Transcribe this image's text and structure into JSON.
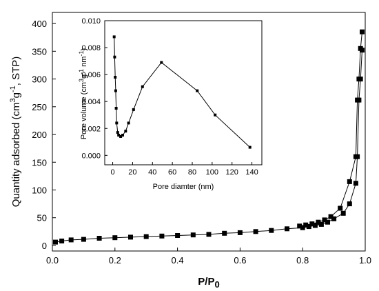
{
  "chart_data": [
    {
      "type": "line",
      "markers": "square",
      "xlabel": "P/P0",
      "ylabel": "Quantity adsorbed (cm3g-1, STP)",
      "xlim": [
        0.0,
        1.0
      ],
      "ylim": [
        -10,
        420
      ],
      "xticks": [
        "0.0",
        "0.2",
        "0.4",
        "0.6",
        "0.8",
        "1.0"
      ],
      "yticks": [
        "0",
        "50",
        "100",
        "150",
        "200",
        "250",
        "300",
        "350",
        "400"
      ],
      "grid": false,
      "series": [
        {
          "x": [
            0.01,
            0.03,
            0.06,
            0.1,
            0.15,
            0.2,
            0.25,
            0.3,
            0.35,
            0.4,
            0.45,
            0.5,
            0.55,
            0.6,
            0.65,
            0.7,
            0.75,
            0.8,
            0.82,
            0.84,
            0.86,
            0.88,
            0.9,
            0.93,
            0.95,
            0.97,
            0.975,
            0.98,
            0.985,
            0.99
          ],
          "values": [
            6,
            8,
            10,
            11,
            13,
            14,
            15,
            16,
            17,
            18,
            19,
            20,
            22,
            23,
            25,
            27,
            30,
            32,
            34,
            36,
            38,
            42,
            48,
            58,
            75,
            112,
            160,
            262,
            300,
            352
          ]
        },
        {
          "x": [
            0.99,
            0.985,
            0.98,
            0.975,
            0.97,
            0.95,
            0.92,
            0.89,
            0.87,
            0.85,
            0.83,
            0.81,
            0.79
          ],
          "values": [
            385,
            355,
            300,
            262,
            160,
            115,
            67,
            52,
            46,
            42,
            39,
            37,
            35
          ]
        }
      ]
    },
    {
      "type": "line",
      "markers": "square",
      "xlabel": "Pore diamter (nm)",
      "ylabel": "Pore volume (cm3g-1nm-1)",
      "xlim": [
        -8,
        150
      ],
      "ylim": [
        -0.0007,
        0.01
      ],
      "xticks": [
        "0",
        "20",
        "40",
        "60",
        "80",
        "100",
        "120",
        "140"
      ],
      "yticks": [
        "0.000",
        "0.002",
        "0.004",
        "0.006",
        "0.008",
        "0.010"
      ],
      "grid": false,
      "series": [
        {
          "x": [
            1.5,
            2.0,
            2.5,
            3.0,
            3.5,
            4.0,
            5.0,
            6.0,
            8.0,
            10,
            13,
            16,
            21,
            30,
            49,
            85,
            103,
            138
          ],
          "values": [
            0.0088,
            0.0073,
            0.0058,
            0.0048,
            0.0035,
            0.0024,
            0.0017,
            0.0015,
            0.0014,
            0.0015,
            0.0018,
            0.0024,
            0.0034,
            0.0051,
            0.0069,
            0.0048,
            0.003,
            0.0006
          ]
        }
      ]
    }
  ]
}
